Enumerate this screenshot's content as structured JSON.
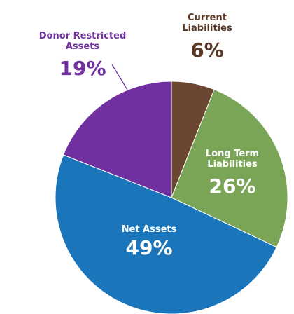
{
  "chart_data": {
    "type": "pie",
    "categories": [
      "Current Liabilities",
      "Long Term Liabilities",
      "Net Assets",
      "Donor Restricted Assets"
    ],
    "values": [
      6,
      26,
      49,
      19
    ],
    "value_labels": [
      "6%",
      "26%",
      "49%",
      "19%"
    ],
    "colors": [
      "#6b4631",
      "#7aa556",
      "#1a75bb",
      "#7030a0"
    ]
  }
}
